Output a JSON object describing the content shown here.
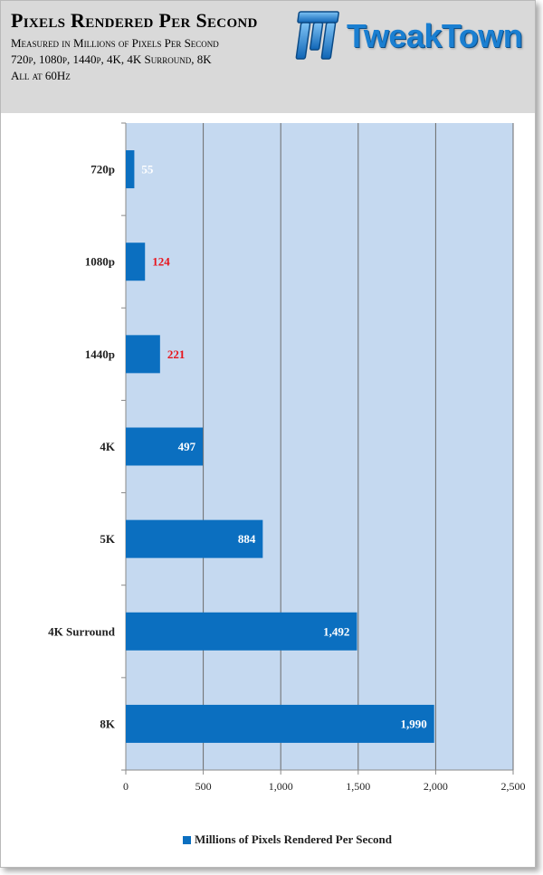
{
  "header": {
    "title": "Pixels Rendered Per Second",
    "subtitle_lines": [
      "Measured in Millions of Pixels Per Second",
      "720p, 1080p, 1440p, 4K, 4K Surround, 8K",
      "All at 60Hz"
    ],
    "logo_text": "TweakTown"
  },
  "colors": {
    "bar": "#0b6fc0",
    "plot_background": "#c5d9f0",
    "gridline": "#6b6b6b",
    "label_white": "#ffffff",
    "label_red": "#e8141c"
  },
  "chart_data": {
    "type": "bar",
    "orientation": "horizontal",
    "categories": [
      "720p",
      "1080p",
      "1440p",
      "4K",
      "5K",
      "4K Surround",
      "8K"
    ],
    "series": [
      {
        "name": "Millions of Pixels Rendered Per Second",
        "values": [
          55,
          124,
          221,
          497,
          884,
          1492,
          1990
        ]
      }
    ],
    "data_labels": [
      "55",
      "124",
      "221",
      "497",
      "884",
      "1,492",
      "1,990"
    ],
    "data_label_colors": [
      "#ffffff",
      "#e8141c",
      "#e8141c",
      "#ffffff",
      "#ffffff",
      "#ffffff",
      "#ffffff"
    ],
    "x_ticks": [
      0,
      500,
      1000,
      1500,
      2000,
      2500
    ],
    "x_tick_labels": [
      "0",
      "500",
      "1,000",
      "1,500",
      "2,000",
      "2,500"
    ],
    "xlim": [
      0,
      2500
    ],
    "grid": true,
    "legend_position": "bottom"
  }
}
